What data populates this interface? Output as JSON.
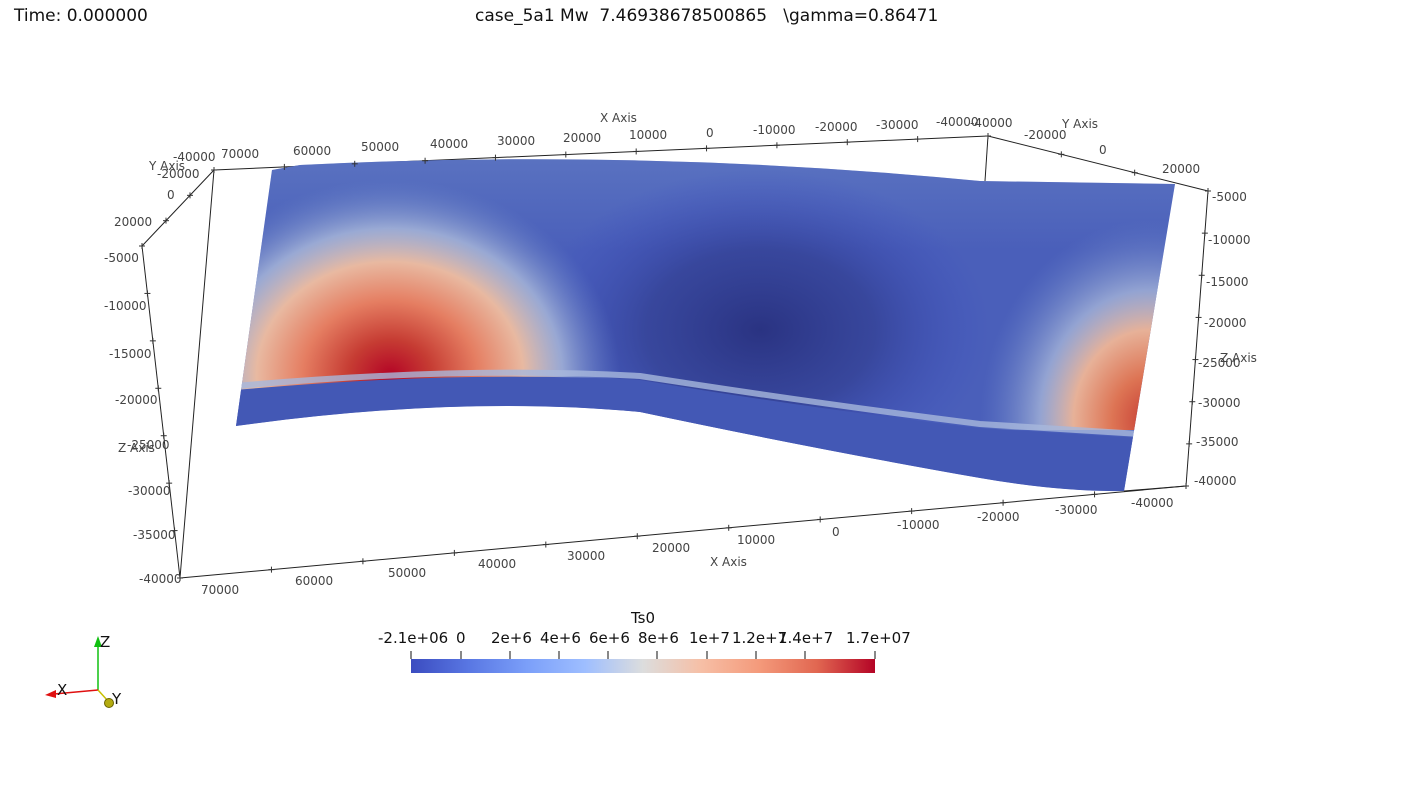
{
  "header": {
    "time": "Time: 0.000000",
    "title": "case_5a1 Mw  7.46938678500865   \\gamma=0.86471"
  },
  "axes": {
    "x_title": "X Axis",
    "y_title": "Y Axis",
    "z_title": "Z Axis",
    "x_ticks_top": [
      "70000",
      "60000",
      "50000",
      "40000",
      "30000",
      "20000",
      "10000",
      "0",
      "-10000",
      "-20000",
      "-30000",
      "-40000"
    ],
    "x_ticks_bottom": [
      "70000",
      "60000",
      "50000",
      "40000",
      "30000",
      "20000",
      "10000",
      "0",
      "-10000",
      "-20000",
      "-30000",
      "-40000"
    ],
    "y_ticks_left": [
      "-40000",
      "-20000",
      "0",
      "20000"
    ],
    "y_ticks_right": [
      "-40000",
      "-20000",
      "0",
      "20000"
    ],
    "z_ticks_left": [
      "-5000",
      "-10000",
      "-15000",
      "-20000",
      "-25000",
      "-30000",
      "-35000",
      "-40000"
    ],
    "z_ticks_right": [
      "-5000",
      "-10000",
      "-15000",
      "-20000",
      "-25000",
      "-30000",
      "-35000",
      "-40000"
    ]
  },
  "colorbar": {
    "title": "Ts0",
    "labels": [
      "-2.1e+06",
      "0",
      "2e+6",
      "4e+6",
      "6e+6",
      "8e+6",
      "1e+7",
      "1.2e+7",
      "1.4e+7",
      "1.7e+07"
    ],
    "colormap": "coolwarm"
  },
  "orientation": {
    "x": "X",
    "y": "Y",
    "z": "Z",
    "x_color": "#e01010",
    "y_color": "#c8c000",
    "z_color": "#10c010"
  }
}
